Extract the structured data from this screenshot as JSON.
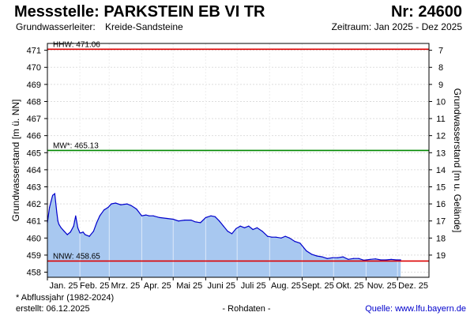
{
  "header": {
    "station_label": "Messstelle: PARKSTEIN EB VI TR",
    "number_label": "Nr: 24600",
    "aquifer_label": "Grundwasserleiter:",
    "aquifer_value": "Kreide-Sandsteine",
    "period_label": "Zeitraum: Jan 2025 - Dez 2025"
  },
  "footer": {
    "note": "* Abflussjahr (1982-2024)",
    "created": "erstellt:  06.12.2025",
    "raw": "- Rohdaten -",
    "source": "Quelle: www.lfu.bayern.de"
  },
  "colors": {
    "fill": "#a8c8f0",
    "line": "#0000cc",
    "hhw": "#dd0000",
    "mw": "#008800",
    "nnw": "#dd0000",
    "grid": "#dddddd"
  },
  "chart_data": {
    "type": "area",
    "ylabel_left": "Grundwasserstand [m ü. NN]",
    "ylabel_right": "Grundwasserstand [m u. Gelände]",
    "ylim": [
      457.7,
      471.4
    ],
    "yticks_left": [
      458,
      459,
      460,
      461,
      462,
      463,
      464,
      465,
      466,
      467,
      468,
      469,
      470,
      471
    ],
    "yticks_right": [
      7,
      8,
      9,
      10,
      11,
      12,
      13,
      14,
      15,
      16,
      17,
      18,
      19
    ],
    "right_axis_offset": 478,
    "xlim": [
      "2025-01-01",
      "2025-12-31"
    ],
    "month_labels": [
      "Jan. 25",
      "Feb. 25",
      "Mrz. 25",
      "Apr. 25",
      "Mai 25",
      "Juni 25",
      "Juli 25",
      "Aug. 25",
      "Sept. 25",
      "Okt. 25",
      "Nov. 25",
      "Dez. 25"
    ],
    "grid": true,
    "reference_lines": [
      {
        "label": "HHW: 471.06",
        "value": 471.06,
        "color_key": "hhw"
      },
      {
        "label": "MW*: 465.13",
        "value": 465.13,
        "color_key": "mw"
      },
      {
        "label": "NNW: 458.65",
        "value": 458.65,
        "color_key": "nnw"
      }
    ],
    "series": [
      {
        "x": [
          "2025-01-01",
          "2025-01-03",
          "2025-01-06",
          "2025-01-08",
          "2025-01-10",
          "2025-01-11",
          "2025-01-12",
          "2025-01-14",
          "2025-01-17",
          "2025-01-20",
          "2025-01-23",
          "2025-01-26",
          "2025-01-28",
          "2025-01-30",
          "2025-02-01",
          "2025-02-02",
          "2025-02-04",
          "2025-02-06",
          "2025-02-10",
          "2025-02-14",
          "2025-02-17",
          "2025-02-20",
          "2025-02-24",
          "2025-02-28",
          "2025-03-03",
          "2025-03-07",
          "2025-03-12",
          "2025-03-18",
          "2025-03-22",
          "2025-03-27",
          "2025-04-01",
          "2025-04-05",
          "2025-04-08",
          "2025-04-12",
          "2025-04-18",
          "2025-04-25",
          "2025-05-01",
          "2025-05-06",
          "2025-05-12",
          "2025-05-18",
          "2025-05-22",
          "2025-05-27",
          "2025-06-01",
          "2025-06-06",
          "2025-06-10",
          "2025-06-14",
          "2025-06-18",
          "2025-06-22",
          "2025-06-26",
          "2025-06-30",
          "2025-07-04",
          "2025-07-08",
          "2025-07-12",
          "2025-07-16",
          "2025-07-20",
          "2025-07-25",
          "2025-07-30",
          "2025-08-03",
          "2025-08-07",
          "2025-08-12",
          "2025-08-16",
          "2025-08-20",
          "2025-08-25",
          "2025-08-30",
          "2025-09-05",
          "2025-09-10",
          "2025-09-15",
          "2025-09-20",
          "2025-09-25",
          "2025-09-30",
          "2025-10-05",
          "2025-10-10",
          "2025-10-15",
          "2025-10-20",
          "2025-10-25",
          "2025-10-30",
          "2025-11-05",
          "2025-11-10",
          "2025-11-15",
          "2025-11-20",
          "2025-11-25",
          "2025-11-30",
          "2025-12-04"
        ],
        "values": [
          460.9,
          461.8,
          462.5,
          462.6,
          461.5,
          461.0,
          460.8,
          460.6,
          460.4,
          460.2,
          460.35,
          460.7,
          461.3,
          460.6,
          460.3,
          460.3,
          460.35,
          460.2,
          460.1,
          460.4,
          460.9,
          461.3,
          461.65,
          461.8,
          462.0,
          462.05,
          461.95,
          462.0,
          461.9,
          461.7,
          461.3,
          461.35,
          461.3,
          461.3,
          461.2,
          461.15,
          461.1,
          461.0,
          461.05,
          461.05,
          460.95,
          460.9,
          461.2,
          461.3,
          461.25,
          461.0,
          460.7,
          460.4,
          460.25,
          460.55,
          460.7,
          460.6,
          460.7,
          460.5,
          460.6,
          460.4,
          460.1,
          460.05,
          460.05,
          460.0,
          460.1,
          460.0,
          459.8,
          459.7,
          459.25,
          459.05,
          458.95,
          458.9,
          458.8,
          458.85,
          458.85,
          458.9,
          458.75,
          458.8,
          458.8,
          458.7,
          458.75,
          458.78,
          458.72,
          458.72,
          458.75,
          458.72,
          458.72
        ]
      }
    ]
  }
}
